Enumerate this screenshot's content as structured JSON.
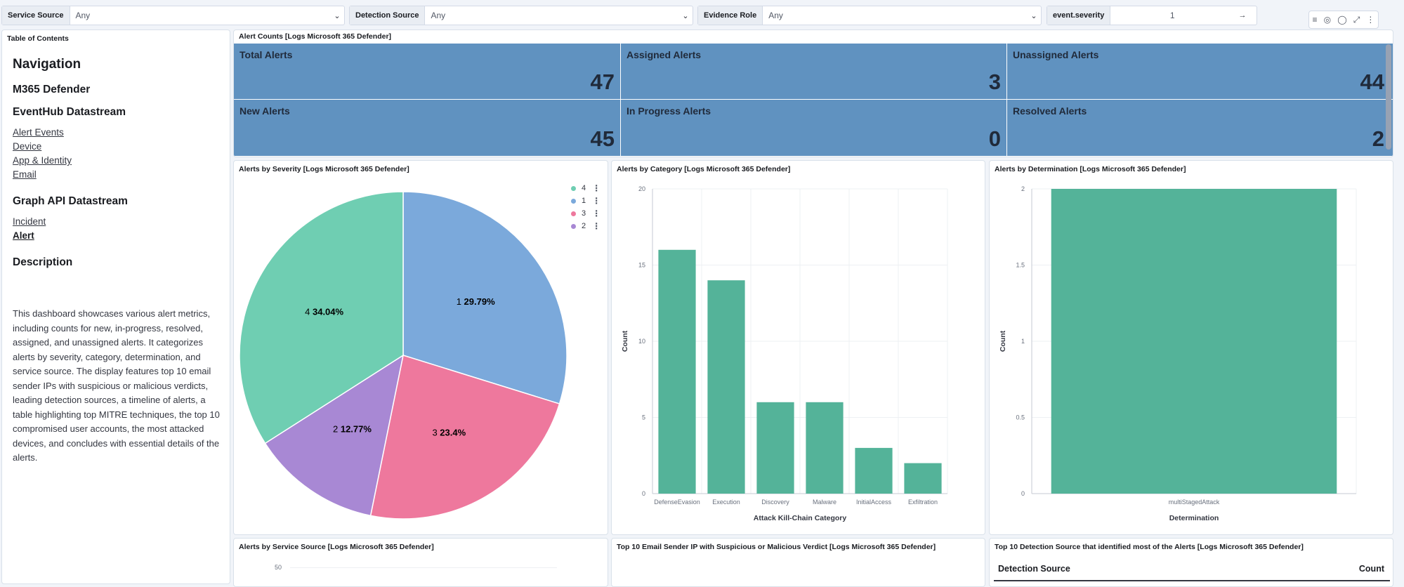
{
  "filters": [
    {
      "label": "Service Source",
      "value": "Any"
    },
    {
      "label": "Detection Source",
      "value": "Any"
    },
    {
      "label": "Evidence Role",
      "value": "Any"
    },
    {
      "label": "event.severity",
      "value": "1"
    }
  ],
  "toc": {
    "panel_title": "Table of Contents",
    "navigation": "Navigation",
    "m365": "M365 Defender",
    "eventhub": "EventHub Datastream",
    "eventhub_links": [
      "Alert Events",
      "Device",
      "App & Identity",
      "Email"
    ],
    "graphapi": "Graph API Datastream",
    "graphapi_links": [
      "Incident",
      "Alert"
    ],
    "description_heading": "Description",
    "description": "This dashboard showcases various alert metrics, including counts for new, in-progress, resolved, assigned, and unassigned alerts. It categorizes alerts by severity, category, determination, and service source. The display features top 10 email sender IPs with suspicious or malicious verdicts, leading detection sources, a timeline of alerts, a table highlighting top MITRE techniques, the top 10 compromised user accounts, the most attacked devices, and concludes with essential details of the alerts."
  },
  "alert_counts": {
    "title": "Alert Counts [Logs Microsoft 365 Defender]",
    "metrics": [
      {
        "label": "Total Alerts",
        "value": "47"
      },
      {
        "label": "Assigned Alerts",
        "value": "3"
      },
      {
        "label": "Unassigned Alerts",
        "value": "44"
      },
      {
        "label": "New Alerts",
        "value": "45"
      },
      {
        "label": "In Progress Alerts",
        "value": "0"
      },
      {
        "label": "Resolved Alerts",
        "value": "2"
      }
    ],
    "color": "#6092c0"
  },
  "panels": {
    "severity_title": "Alerts by Severity [Logs Microsoft 365 Defender]",
    "category_title": "Alerts by Category [Logs Microsoft 365 Defender]",
    "determination_title": "Alerts by Determination [Logs Microsoft 365 Defender]",
    "service_title": "Alerts by Service Source [Logs Microsoft 365 Defender]",
    "email_title": "Top 10 Email Sender IP with Suspicious or Malicious Verdict [Logs Microsoft 365 Defender]",
    "detection_title": "Top 10 Detection Source that identified most of the Alerts [Logs Microsoft 365 Defender]",
    "detection_col1": "Detection Source",
    "detection_col2": "Count",
    "service_ytick": "50"
  },
  "chart_data": [
    {
      "type": "pie",
      "title": "Alerts by Severity [Logs Microsoft 365 Defender]",
      "slices": [
        {
          "label": "1",
          "percent": 29.79,
          "pct_label": "29.79%",
          "color": "#7ba9db"
        },
        {
          "label": "3",
          "percent": 23.4,
          "pct_label": "23.4%",
          "color": "#ee789d"
        },
        {
          "label": "2",
          "percent": 12.77,
          "pct_label": "12.77%",
          "color": "#a888d4"
        },
        {
          "label": "4",
          "percent": 34.04,
          "pct_label": "34.04%",
          "color": "#6fceb2"
        }
      ],
      "legend": [
        {
          "label": "4",
          "color": "#6fceb2"
        },
        {
          "label": "1",
          "color": "#7ba9db"
        },
        {
          "label": "3",
          "color": "#ee789d"
        },
        {
          "label": "2",
          "color": "#a888d4"
        }
      ]
    },
    {
      "type": "bar",
      "title": "Alerts by Category [Logs Microsoft 365 Defender]",
      "categories": [
        "DefenseEvasion",
        "Execution",
        "Discovery",
        "Malware",
        "InitialAccess",
        "Exfiltration"
      ],
      "values": [
        16,
        14,
        6,
        6,
        3,
        2
      ],
      "xlabel": "Attack Kill-Chain Category",
      "ylabel": "Count",
      "ylim": [
        0,
        20
      ],
      "yticks": [
        0,
        5,
        10,
        15,
        20
      ],
      "color": "#54b399"
    },
    {
      "type": "bar",
      "title": "Alerts by Determination [Logs Microsoft 365 Defender]",
      "categories": [
        "multiStagedAttack"
      ],
      "values": [
        2
      ],
      "xlabel": "Determination",
      "ylabel": "Count",
      "ylim": [
        0,
        2
      ],
      "yticks": [
        0,
        0.5,
        1,
        1.5,
        2
      ],
      "color": "#54b399"
    }
  ]
}
